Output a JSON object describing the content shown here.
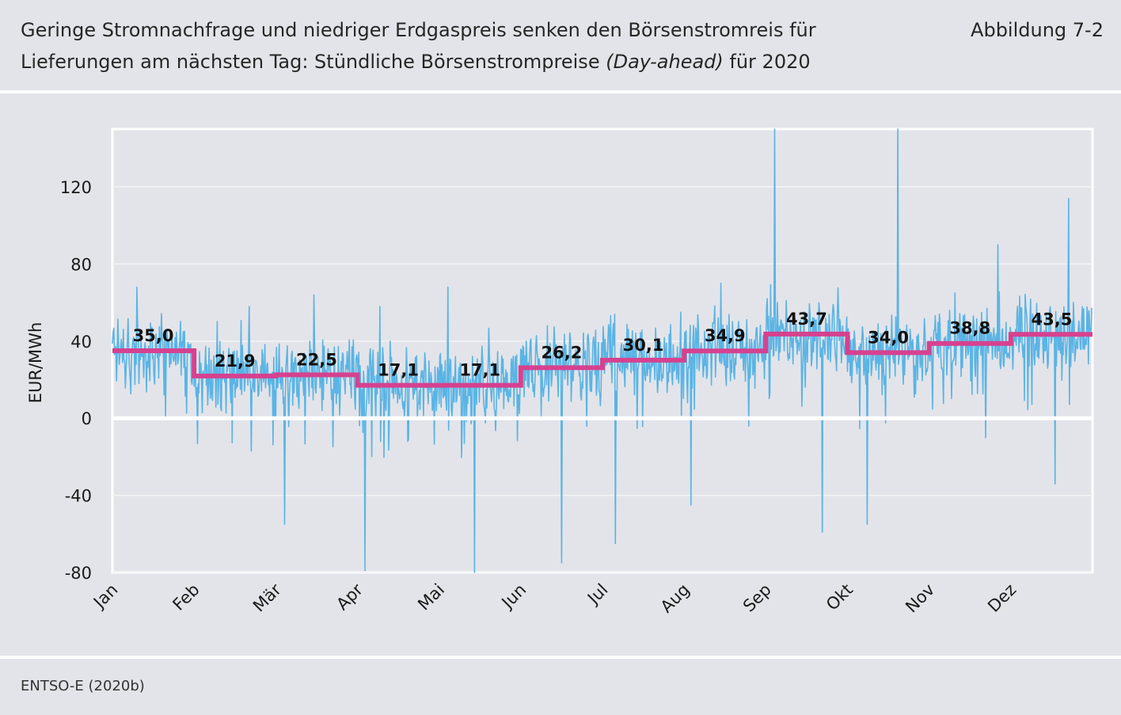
{
  "header": {
    "title_part1": "Geringe Stromnachfrage und niedriger Erdgaspreis senken den Börsenstromreis für Lieferungen am nächsten Tag: Stündliche Börsenstrompreise ",
    "title_italic": "(Day-ahead)",
    "title_part2": " für 2020",
    "figure_number": "Abbildung 7-2"
  },
  "source": "ENTSO-E (2020b)",
  "colors": {
    "background": "#e3e4e9",
    "hourly_line": "#5ab4e5",
    "monthly_mean": "#d6418f",
    "zero_line": "#ffffff"
  },
  "chart_data": {
    "type": "line",
    "title": "",
    "xlabel": "",
    "ylabel": "EUR/MWh",
    "ylim": [
      -80,
      150
    ],
    "yticks": [
      -80,
      -40,
      0,
      40,
      80,
      120
    ],
    "ytick_labels": [
      "-80",
      "-40",
      "0",
      "40",
      "80",
      "120"
    ],
    "grid": true,
    "categories": [
      "Jan",
      "Feb",
      "Mär",
      "Apr",
      "Mai",
      "Jun",
      "Jul",
      "Aug",
      "Sep",
      "Okt",
      "Nov",
      "Dez"
    ],
    "series": [
      {
        "name": "",
        "kind": "monthly-mean",
        "values": [
          35.0,
          21.9,
          22.5,
          17.1,
          17.1,
          26.2,
          30.1,
          34.9,
          43.7,
          34.0,
          38.8,
          43.5
        ],
        "labels": [
          "35,0",
          "21,9",
          "22,5",
          "17,1",
          "17,1",
          "26,2",
          "30,1",
          "34,9",
          "43,7",
          "34,0",
          "38,8",
          "43,5"
        ]
      },
      {
        "name": "",
        "kind": "hourly",
        "monthly_min": [
          0,
          -17,
          -55,
          -79,
          -80,
          -75,
          -65,
          -45,
          -59,
          -55,
          -10,
          -34
        ],
        "monthly_max": [
          68,
          58,
          64,
          58,
          68,
          48,
          55,
          70,
          150,
          150,
          90,
          114
        ]
      }
    ]
  }
}
